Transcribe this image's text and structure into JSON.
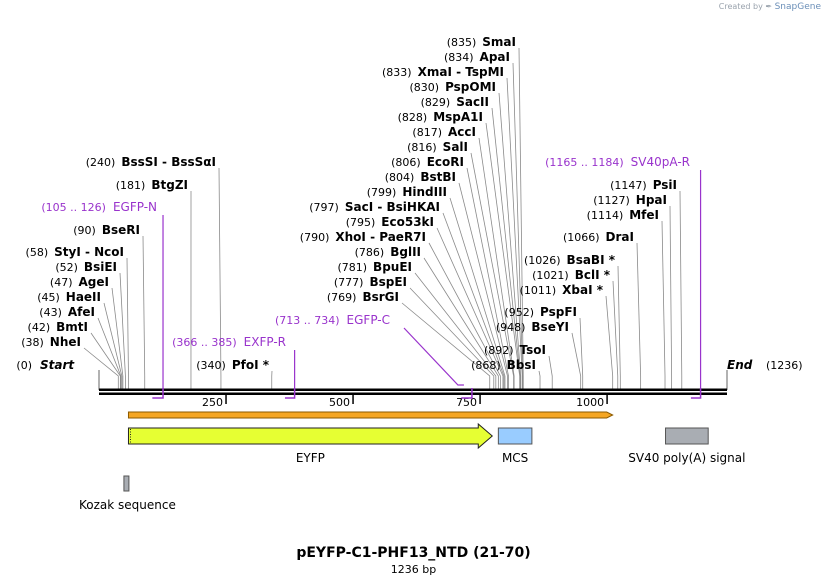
{
  "credit": {
    "prefix": "Created by",
    "brand": "SnapGene"
  },
  "sequence": {
    "name": "pEYFP-C1-PHF13_NTD (21-70)",
    "length_label": "1236 bp",
    "length": 1236
  },
  "ends": {
    "start": {
      "pos": "(0)",
      "name": "Start"
    },
    "end": {
      "pos": "(1236)",
      "name": "End"
    }
  },
  "ruler": {
    "ticks": [
      {
        "value": 250,
        "label": "250"
      },
      {
        "value": 500,
        "label": "500"
      },
      {
        "value": 750,
        "label": "750"
      },
      {
        "value": 1000,
        "label": "1000"
      }
    ]
  },
  "sites": [
    {
      "pos": 38,
      "pos_label": "(38)",
      "name": "NheI"
    },
    {
      "pos": 42,
      "pos_label": "(42)",
      "name": "BmtI"
    },
    {
      "pos": 43,
      "pos_label": "(43)",
      "name": "AfeI"
    },
    {
      "pos": 45,
      "pos_label": "(45)",
      "name": "HaeII"
    },
    {
      "pos": 47,
      "pos_label": "(47)",
      "name": "AgeI"
    },
    {
      "pos": 52,
      "pos_label": "(52)",
      "name": "BsiEI"
    },
    {
      "pos": 58,
      "pos_label": "(58)",
      "name": "StyI  - NcoI"
    },
    {
      "pos": 90,
      "pos_label": "(90)",
      "name": "BseRI"
    },
    {
      "pos": 181,
      "pos_label": "(181)",
      "name": "BtgZI"
    },
    {
      "pos": 240,
      "pos_label": "(240)",
      "name": "BssSI  - BssSαI"
    },
    {
      "pos": 340,
      "pos_label": "(340)",
      "name": "PfoI *"
    },
    {
      "pos": 769,
      "pos_label": "(769)",
      "name": "BsrGI"
    },
    {
      "pos": 777,
      "pos_label": "(777)",
      "name": "BspEI"
    },
    {
      "pos": 781,
      "pos_label": "(781)",
      "name": "BpuEI"
    },
    {
      "pos": 786,
      "pos_label": "(786)",
      "name": "BglII"
    },
    {
      "pos": 790,
      "pos_label": "(790)",
      "name": "XhoI  - PaeR7I"
    },
    {
      "pos": 795,
      "pos_label": "(795)",
      "name": "Eco53kI"
    },
    {
      "pos": 797,
      "pos_label": "(797)",
      "name": "SacI  - BsiHKAI"
    },
    {
      "pos": 799,
      "pos_label": "(799)",
      "name": "HindIII"
    },
    {
      "pos": 804,
      "pos_label": "(804)",
      "name": "BstBI"
    },
    {
      "pos": 806,
      "pos_label": "(806)",
      "name": "EcoRI"
    },
    {
      "pos": 816,
      "pos_label": "(816)",
      "name": "SalI"
    },
    {
      "pos": 817,
      "pos_label": "(817)",
      "name": "AccI"
    },
    {
      "pos": 828,
      "pos_label": "(828)",
      "name": "MspA1I"
    },
    {
      "pos": 829,
      "pos_label": "(829)",
      "name": "SacII"
    },
    {
      "pos": 830,
      "pos_label": "(830)",
      "name": "PspOMI"
    },
    {
      "pos": 833,
      "pos_label": "(833)",
      "name": "XmaI  - TspMI"
    },
    {
      "pos": 834,
      "pos_label": "(834)",
      "name": "ApaI"
    },
    {
      "pos": 835,
      "pos_label": "(835)",
      "name": "SmaI"
    },
    {
      "pos": 868,
      "pos_label": "(868)",
      "name": "BbsI"
    },
    {
      "pos": 892,
      "pos_label": "(892)",
      "name": "TsoI"
    },
    {
      "pos": 948,
      "pos_label": "(948)",
      "name": "BseYI"
    },
    {
      "pos": 952,
      "pos_label": "(952)",
      "name": "PspFI"
    },
    {
      "pos": 1011,
      "pos_label": "(1011)",
      "name": "XbaI *"
    },
    {
      "pos": 1021,
      "pos_label": "(1021)",
      "name": "BclI *"
    },
    {
      "pos": 1026,
      "pos_label": "(1026)",
      "name": "BsaBI *"
    },
    {
      "pos": 1066,
      "pos_label": "(1066)",
      "name": "DraI"
    },
    {
      "pos": 1114,
      "pos_label": "(1114)",
      "name": "MfeI"
    },
    {
      "pos": 1127,
      "pos_label": "(1127)",
      "name": "HpaI"
    },
    {
      "pos": 1147,
      "pos_label": "(1147)",
      "name": "PsiI"
    }
  ],
  "primers": [
    {
      "start": 105,
      "end": 126,
      "range_label": "(105 .. 126)",
      "name": "EGFP-N"
    },
    {
      "start": 366,
      "end": 385,
      "range_label": "(366 .. 385)",
      "name": "EXFP-R"
    },
    {
      "start": 713,
      "end": 734,
      "range_label": "(713 .. 734)",
      "name": "EGFP-C"
    },
    {
      "start": 1165,
      "end": 1184,
      "range_label": "(1165 .. 1184)",
      "name": "SV40pA-R"
    }
  ],
  "orf": {
    "start": 58,
    "end": 1011
  },
  "features": [
    {
      "name": "EYFP",
      "start": 58,
      "end": 774,
      "type": "arrow",
      "color": "#e6ff33"
    },
    {
      "name": "MCS",
      "start": 786,
      "end": 852,
      "type": "box",
      "color": "#99ccff"
    },
    {
      "name": "SV40 poly(A) signal",
      "start": 1115,
      "end": 1199,
      "type": "box",
      "color": "#a9adb3"
    },
    {
      "name": "Kozak sequence",
      "start": 51,
      "end": 60,
      "type": "box",
      "color": "#a9adb3"
    }
  ],
  "colors": {
    "primer": "#9933cc",
    "backbone": "#000000",
    "orf_fill": "#f5a623",
    "orf_edge": "#8b5a00"
  }
}
